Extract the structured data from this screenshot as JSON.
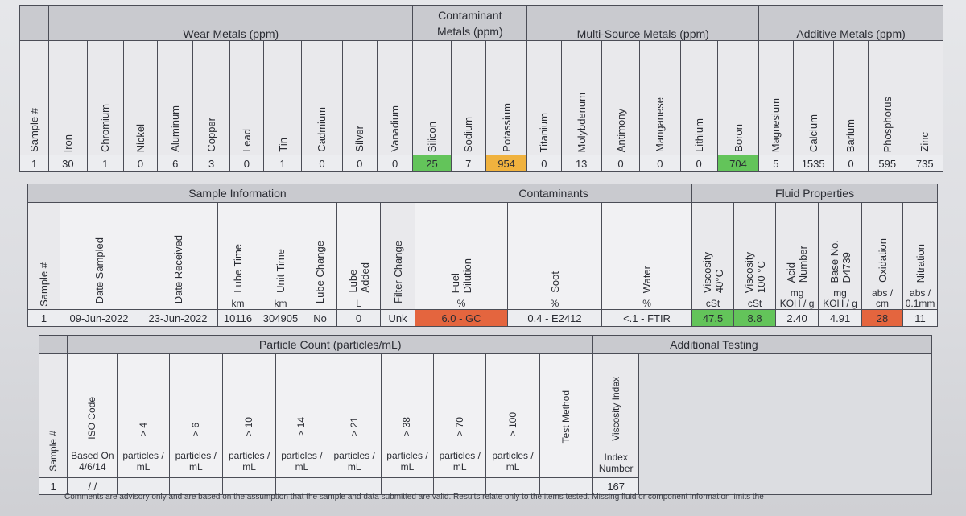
{
  "metals": {
    "groups": [
      "Wear Metals (ppm)",
      "Contaminant\nMetals (ppm)",
      "Multi-Source Metals (ppm)",
      "Additive Metals (ppm)"
    ],
    "sample_col": "Sample #",
    "columns": [
      "Iron",
      "Chromium",
      "Nickel",
      "Aluminum",
      "Copper",
      "Lead",
      "Tin",
      "Cadmium",
      "Silver",
      "Vanadium",
      "Silicon",
      "Sodium",
      "Potassium",
      "Titanium",
      "Molybdenum",
      "Antimony",
      "Manganese",
      "Lithium",
      "Boron",
      "Magnesium",
      "Calcium",
      "Barium",
      "Phosphorus",
      "Zinc"
    ],
    "sample": "1",
    "values": [
      "30",
      "1",
      "0",
      "6",
      "3",
      "0",
      "1",
      "0",
      "0",
      "0",
      "25",
      "7",
      "954",
      "0",
      "13",
      "0",
      "0",
      "0",
      "704",
      "5",
      "1535",
      "0",
      "595",
      "735"
    ],
    "highlight_colors": {
      "green": "#63c45a",
      "orange": "#f0b23e"
    }
  },
  "sample_info": {
    "groups": [
      "Sample Information",
      "Contaminants",
      "Fluid Properties"
    ],
    "sample_col": "Sample #",
    "columns": [
      {
        "name": "Date Sampled",
        "unit": ""
      },
      {
        "name": "Date  Received",
        "unit": ""
      },
      {
        "name": "Lube Time",
        "unit": "km"
      },
      {
        "name": "Unit Time",
        "unit": "km"
      },
      {
        "name": "Lube Change",
        "unit": ""
      },
      {
        "name": "Lube\nAdded",
        "unit": "L"
      },
      {
        "name": "Filter Change",
        "unit": ""
      },
      {
        "name": "Fuel\nDilution",
        "unit": "%"
      },
      {
        "name": "Soot",
        "unit": "%"
      },
      {
        "name": "Water",
        "unit": "%"
      },
      {
        "name": "Viscosity\n40°C",
        "unit": "cSt"
      },
      {
        "name": "Viscosity\n100 °C",
        "unit": "cSt"
      },
      {
        "name": "Acid\nNumber",
        "unit": "mg\nKOH / g"
      },
      {
        "name": "Base No.\nD4739",
        "unit": "mg\nKOH / g"
      },
      {
        "name": "Oxidation",
        "unit": "abs /\ncm"
      },
      {
        "name": "Nitration",
        "unit": "abs /\n0.1mm"
      }
    ],
    "sample": "1",
    "values": [
      "09-Jun-2022",
      "23-Jun-2022",
      "10116",
      "304905",
      "No",
      "0",
      "Unk",
      "6.0 - GC",
      "0.4 - E2412",
      "<.1 - FTIR",
      "47.5",
      "8.8",
      "2.40",
      "4.91",
      "28",
      "11"
    ]
  },
  "particle": {
    "group": "Particle Count (particles/mL)",
    "additional": "Additional Testing",
    "sample_col": "Sample #",
    "iso": {
      "name": "ISO Code",
      "unit": "Based On\n4/6/14"
    },
    "columns": [
      "> 4",
      "> 6",
      "> 10",
      "> 14",
      "> 21",
      "> 38",
      "> 70",
      "> 100"
    ],
    "count_unit": "particles /\nmL",
    "test_method": "Test Method",
    "viscosity_index": {
      "name": "Viscosity Index",
      "unit": "Index\nNumber"
    },
    "sample": "1",
    "iso_value": "/ /",
    "vi_value": "167"
  },
  "footer": "Comments are advisory only and are based on the assumption that the sample and data submitted are valid. Results relate only to the items tested. Missing fluid or component information limits the"
}
